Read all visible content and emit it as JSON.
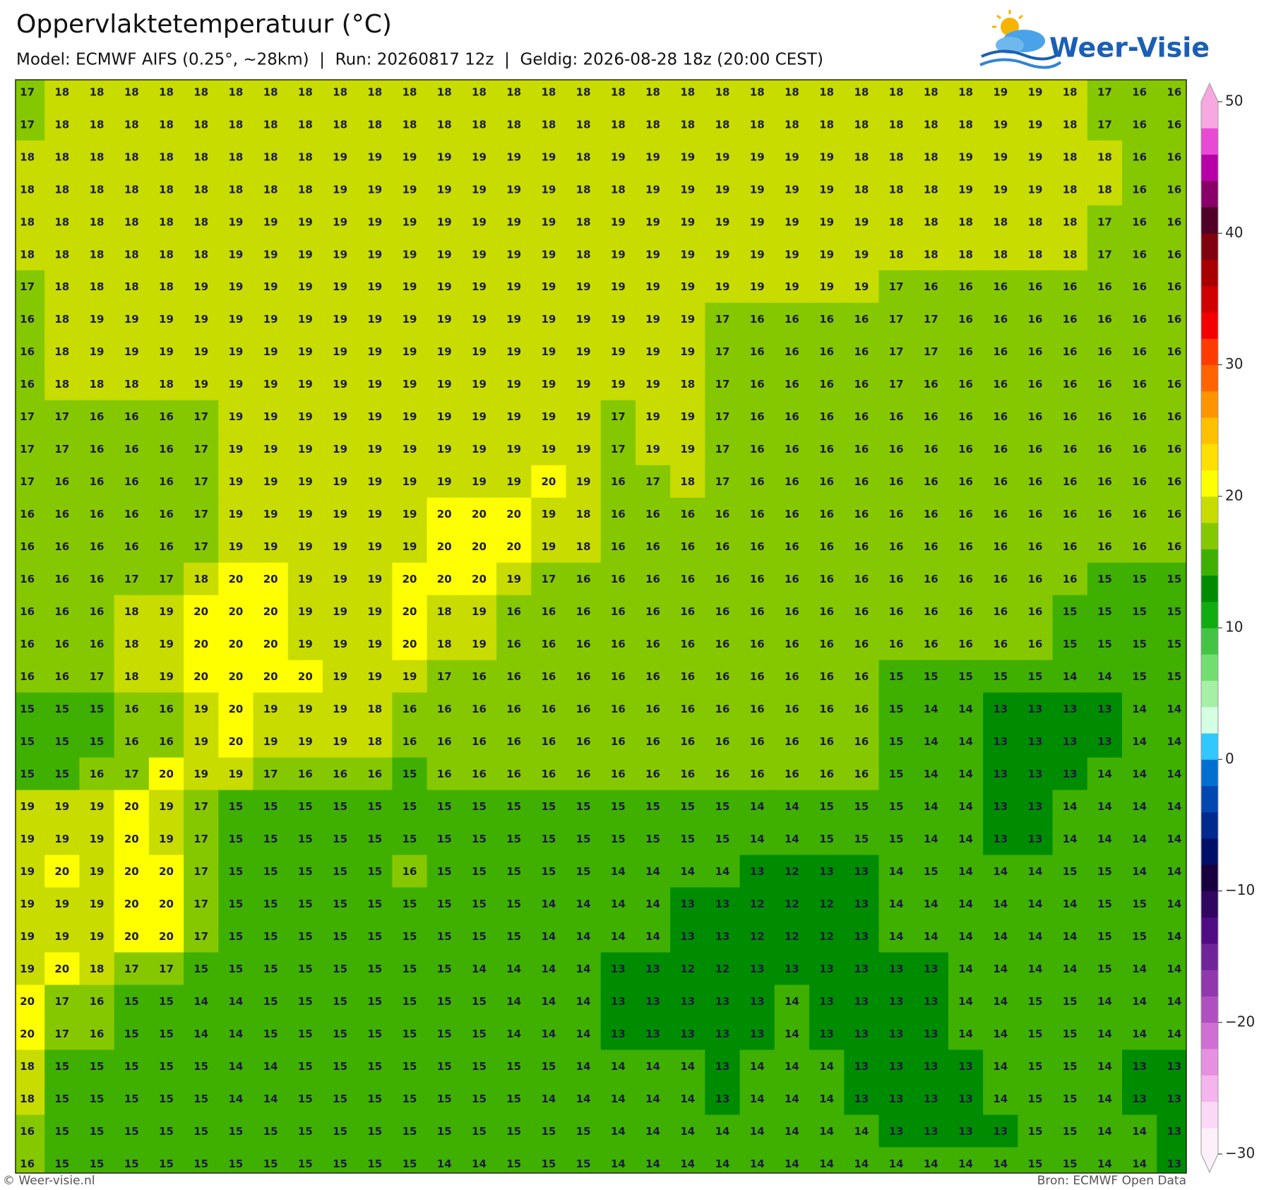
{
  "header": {
    "title": "Oppervlaktetemperatuur (°C)",
    "subtitle": "Model: ECMWF AIFS (0.25°, ~28km)  |  Run: 20260817 12z  |  Geldig: 2026-08-28 18z (20:00 CEST)",
    "logo": "Weer-Visie"
  },
  "map": {
    "values": [
      [
        17,
        18,
        18,
        18,
        18,
        18,
        18,
        18,
        18,
        18,
        18,
        18,
        18,
        18,
        18,
        18,
        18,
        18,
        18,
        18,
        18,
        18,
        18,
        18,
        18,
        18,
        18,
        18,
        19,
        19,
        18,
        17,
        16,
        16
      ],
      [
        17,
        18,
        18,
        18,
        18,
        18,
        18,
        18,
        18,
        18,
        18,
        18,
        18,
        18,
        18,
        18,
        18,
        18,
        18,
        18,
        18,
        18,
        18,
        18,
        18,
        18,
        18,
        18,
        19,
        19,
        18,
        17,
        16,
        16
      ],
      [
        18,
        18,
        18,
        18,
        18,
        18,
        18,
        18,
        18,
        19,
        19,
        19,
        19,
        19,
        19,
        19,
        18,
        19,
        19,
        19,
        19,
        19,
        19,
        19,
        18,
        18,
        18,
        19,
        19,
        19,
        18,
        18,
        16,
        16
      ],
      [
        18,
        18,
        18,
        18,
        18,
        18,
        18,
        18,
        18,
        19,
        19,
        19,
        19,
        19,
        19,
        19,
        18,
        18,
        19,
        19,
        19,
        19,
        19,
        19,
        18,
        18,
        18,
        19,
        19,
        19,
        18,
        18,
        16,
        16
      ],
      [
        18,
        18,
        18,
        18,
        18,
        18,
        19,
        19,
        19,
        19,
        19,
        19,
        19,
        19,
        19,
        19,
        18,
        19,
        19,
        19,
        19,
        19,
        19,
        19,
        19,
        18,
        18,
        18,
        18,
        18,
        18,
        17,
        16,
        16
      ],
      [
        18,
        18,
        18,
        18,
        18,
        18,
        19,
        19,
        19,
        19,
        19,
        19,
        19,
        19,
        19,
        19,
        18,
        19,
        19,
        19,
        19,
        19,
        19,
        19,
        19,
        18,
        18,
        18,
        18,
        18,
        18,
        17,
        16,
        16
      ],
      [
        17,
        18,
        18,
        18,
        18,
        19,
        19,
        19,
        19,
        19,
        19,
        19,
        19,
        19,
        19,
        19,
        19,
        19,
        19,
        19,
        19,
        19,
        19,
        19,
        19,
        17,
        16,
        16,
        16,
        16,
        16,
        16,
        16,
        16
      ],
      [
        16,
        18,
        19,
        19,
        19,
        19,
        19,
        19,
        19,
        19,
        19,
        19,
        19,
        19,
        19,
        19,
        19,
        19,
        19,
        19,
        17,
        16,
        16,
        16,
        16,
        17,
        17,
        16,
        16,
        16,
        16,
        16,
        16,
        16
      ],
      [
        16,
        18,
        19,
        19,
        19,
        19,
        19,
        19,
        19,
        19,
        19,
        19,
        19,
        19,
        19,
        19,
        19,
        19,
        19,
        19,
        17,
        16,
        16,
        16,
        16,
        17,
        17,
        16,
        16,
        16,
        16,
        16,
        16,
        16
      ],
      [
        16,
        18,
        18,
        18,
        18,
        19,
        19,
        19,
        19,
        19,
        19,
        19,
        19,
        19,
        19,
        19,
        19,
        19,
        19,
        18,
        17,
        16,
        16,
        16,
        16,
        17,
        16,
        16,
        16,
        16,
        16,
        16,
        16,
        16
      ],
      [
        17,
        17,
        16,
        16,
        16,
        17,
        19,
        19,
        19,
        19,
        19,
        19,
        19,
        19,
        19,
        19,
        19,
        17,
        19,
        19,
        17,
        16,
        16,
        16,
        16,
        16,
        16,
        16,
        16,
        16,
        16,
        16,
        16,
        16
      ],
      [
        17,
        17,
        16,
        16,
        16,
        17,
        19,
        19,
        19,
        19,
        19,
        19,
        19,
        19,
        19,
        19,
        19,
        17,
        19,
        19,
        17,
        16,
        16,
        16,
        16,
        16,
        16,
        16,
        16,
        16,
        16,
        16,
        16,
        16
      ],
      [
        17,
        16,
        16,
        16,
        16,
        17,
        19,
        19,
        19,
        19,
        19,
        19,
        19,
        19,
        19,
        20,
        19,
        16,
        17,
        18,
        17,
        16,
        16,
        16,
        16,
        16,
        16,
        16,
        16,
        16,
        16,
        16,
        16,
        16
      ],
      [
        16,
        16,
        16,
        16,
        16,
        17,
        19,
        19,
        19,
        19,
        19,
        19,
        20,
        20,
        20,
        19,
        18,
        16,
        16,
        16,
        16,
        16,
        16,
        16,
        16,
        16,
        16,
        16,
        16,
        16,
        16,
        16,
        16,
        16
      ],
      [
        16,
        16,
        16,
        16,
        16,
        17,
        19,
        19,
        19,
        19,
        19,
        19,
        20,
        20,
        20,
        19,
        18,
        16,
        16,
        16,
        16,
        16,
        16,
        16,
        16,
        16,
        16,
        16,
        16,
        16,
        16,
        16,
        16,
        16
      ],
      [
        16,
        16,
        16,
        17,
        17,
        18,
        20,
        20,
        19,
        19,
        19,
        20,
        20,
        20,
        19,
        17,
        16,
        16,
        16,
        16,
        16,
        16,
        16,
        16,
        16,
        16,
        16,
        16,
        16,
        16,
        16,
        15,
        15,
        15
      ],
      [
        16,
        16,
        16,
        18,
        19,
        20,
        20,
        20,
        19,
        19,
        19,
        20,
        18,
        19,
        16,
        16,
        16,
        16,
        16,
        16,
        16,
        16,
        16,
        16,
        16,
        16,
        16,
        16,
        16,
        16,
        15,
        15,
        15,
        15
      ],
      [
        16,
        16,
        16,
        18,
        19,
        20,
        20,
        20,
        19,
        19,
        19,
        20,
        18,
        19,
        16,
        16,
        16,
        16,
        16,
        16,
        16,
        16,
        16,
        16,
        16,
        16,
        16,
        16,
        16,
        16,
        15,
        15,
        15,
        15
      ],
      [
        16,
        16,
        17,
        18,
        19,
        20,
        20,
        20,
        20,
        19,
        19,
        19,
        17,
        16,
        16,
        16,
        16,
        16,
        16,
        16,
        16,
        16,
        16,
        16,
        16,
        15,
        15,
        15,
        15,
        15,
        14,
        14,
        15,
        15
      ],
      [
        15,
        15,
        15,
        16,
        16,
        19,
        20,
        19,
        19,
        19,
        18,
        16,
        16,
        16,
        16,
        16,
        16,
        16,
        16,
        16,
        16,
        16,
        16,
        16,
        16,
        15,
        14,
        14,
        13,
        13,
        13,
        13,
        14,
        14
      ],
      [
        15,
        15,
        15,
        16,
        16,
        19,
        20,
        19,
        19,
        19,
        18,
        16,
        16,
        16,
        16,
        16,
        16,
        16,
        16,
        16,
        16,
        16,
        16,
        16,
        16,
        15,
        14,
        14,
        13,
        13,
        13,
        13,
        14,
        14
      ],
      [
        15,
        15,
        16,
        17,
        20,
        19,
        19,
        17,
        16,
        16,
        16,
        15,
        16,
        16,
        16,
        16,
        16,
        16,
        16,
        16,
        16,
        16,
        16,
        16,
        16,
        15,
        14,
        14,
        13,
        13,
        13,
        14,
        14,
        14
      ],
      [
        19,
        19,
        19,
        20,
        19,
        17,
        15,
        15,
        15,
        15,
        15,
        15,
        15,
        15,
        15,
        15,
        15,
        15,
        15,
        15,
        15,
        14,
        14,
        15,
        15,
        15,
        14,
        14,
        13,
        13,
        14,
        14,
        14,
        14
      ],
      [
        19,
        19,
        19,
        20,
        19,
        17,
        15,
        15,
        15,
        15,
        15,
        15,
        15,
        15,
        15,
        15,
        15,
        15,
        15,
        15,
        15,
        14,
        14,
        15,
        15,
        15,
        14,
        14,
        13,
        13,
        14,
        14,
        14,
        14
      ],
      [
        19,
        20,
        19,
        20,
        20,
        17,
        15,
        15,
        15,
        15,
        15,
        16,
        15,
        15,
        15,
        15,
        15,
        14,
        14,
        14,
        14,
        13,
        12,
        13,
        13,
        14,
        15,
        14,
        14,
        14,
        15,
        15,
        14,
        14
      ],
      [
        19,
        19,
        19,
        20,
        20,
        17,
        15,
        15,
        15,
        15,
        15,
        15,
        15,
        15,
        15,
        14,
        14,
        14,
        14,
        13,
        13,
        12,
        12,
        12,
        13,
        14,
        14,
        14,
        14,
        14,
        14,
        15,
        15,
        14
      ],
      [
        19,
        19,
        19,
        20,
        20,
        17,
        15,
        15,
        15,
        15,
        15,
        15,
        15,
        15,
        15,
        14,
        14,
        14,
        14,
        13,
        13,
        12,
        12,
        12,
        13,
        14,
        14,
        14,
        14,
        14,
        14,
        15,
        15,
        14
      ],
      [
        19,
        20,
        18,
        17,
        17,
        15,
        15,
        15,
        15,
        15,
        15,
        15,
        15,
        14,
        14,
        14,
        14,
        13,
        13,
        12,
        12,
        13,
        13,
        13,
        13,
        13,
        13,
        14,
        14,
        14,
        14,
        15,
        14,
        14
      ],
      [
        20,
        17,
        16,
        15,
        15,
        14,
        14,
        15,
        15,
        15,
        15,
        15,
        15,
        15,
        14,
        14,
        14,
        13,
        13,
        13,
        13,
        13,
        14,
        13,
        13,
        13,
        13,
        14,
        14,
        15,
        15,
        14,
        14,
        14
      ],
      [
        20,
        17,
        16,
        15,
        15,
        14,
        14,
        15,
        15,
        15,
        15,
        15,
        15,
        15,
        14,
        14,
        14,
        13,
        13,
        13,
        13,
        13,
        14,
        13,
        13,
        13,
        13,
        14,
        14,
        15,
        15,
        14,
        14,
        14
      ],
      [
        18,
        15,
        15,
        15,
        15,
        15,
        14,
        14,
        15,
        15,
        15,
        15,
        15,
        15,
        15,
        15,
        14,
        14,
        14,
        14,
        13,
        14,
        14,
        14,
        13,
        13,
        13,
        13,
        14,
        15,
        15,
        14,
        13,
        13
      ],
      [
        18,
        15,
        15,
        15,
        15,
        15,
        14,
        14,
        15,
        15,
        15,
        15,
        15,
        15,
        15,
        14,
        14,
        14,
        14,
        14,
        13,
        14,
        14,
        14,
        13,
        13,
        13,
        13,
        14,
        15,
        15,
        14,
        13,
        13
      ],
      [
        16,
        15,
        15,
        15,
        15,
        15,
        15,
        15,
        15,
        15,
        15,
        15,
        15,
        15,
        15,
        15,
        15,
        14,
        14,
        14,
        14,
        14,
        14,
        14,
        14,
        13,
        13,
        13,
        13,
        15,
        15,
        14,
        14,
        13
      ],
      [
        16,
        15,
        15,
        15,
        15,
        15,
        15,
        15,
        15,
        15,
        15,
        15,
        14,
        14,
        15,
        15,
        15,
        14,
        14,
        14,
        14,
        14,
        14,
        14,
        14,
        14,
        14,
        14,
        14,
        15,
        15,
        14,
        14,
        13
      ]
    ]
  },
  "colorbar": {
    "lim": [
      -30,
      50
    ],
    "ticks": [
      {
        "value": -30,
        "label": "−30"
      },
      {
        "value": -20,
        "label": "−20"
      },
      {
        "value": -10,
        "label": "−10"
      },
      0,
      10,
      20,
      30,
      40,
      50
    ],
    "colors": [
      "#fdf0fb",
      "#fbd8f5",
      "#f4b4ec",
      "#e690e0",
      "#cf6fd3",
      "#b050c0",
      "#9038ac",
      "#70249a",
      "#500c84",
      "#300660",
      "#180040",
      "#001068",
      "#002a90",
      "#0048b0",
      "#0070d0",
      "#30c8ff",
      "#d4ffe2",
      "#a6f0a6",
      "#72de70",
      "#44c444",
      "#10ac10",
      "#008c00",
      "#3fb000",
      "#86c800",
      "#c8dc00",
      "#ffff00",
      "#ffe000",
      "#ffc000",
      "#ff9400",
      "#ff6400",
      "#ff3c00",
      "#f40000",
      "#d00000",
      "#a80000",
      "#800010",
      "#500028",
      "#880068",
      "#b800a8",
      "#e84ad4",
      "#f8a8e0"
    ]
  },
  "footer": {
    "left": "© Weer-visie.nl",
    "right": "Bron: ECMWF Open Data"
  }
}
